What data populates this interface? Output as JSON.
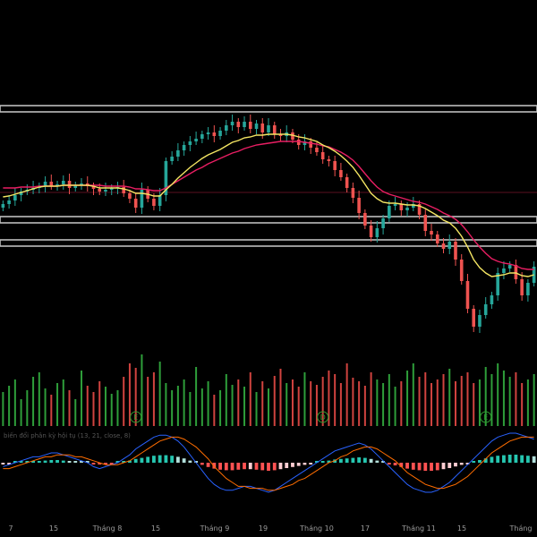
{
  "chart_data": {
    "type": "candlestick",
    "x_ticks": [
      "7",
      "15",
      "Tháng 8",
      "15",
      "Tháng 9",
      "19",
      "Tháng 10",
      "17",
      "Tháng 11",
      "15",
      "Tháng"
    ],
    "oscillator_label": "biến đổi phân kỳ hội tụ (13, 21, close, 8)",
    "event_markers": [
      "E",
      "D",
      "E"
    ],
    "horizontal_zones": [
      {
        "name": "top-resistance",
        "price": 121
      },
      {
        "name": "upper-support",
        "price": 245
      },
      {
        "name": "lower-support",
        "price": 271
      }
    ],
    "reference_price": 215,
    "series": [
      {
        "name": "close",
        "values": [
          228,
          224,
          218,
          214,
          212,
          210,
          208,
          203,
          208,
          206,
          202,
          210,
          207,
          205,
          208,
          211,
          214,
          212,
          210,
          209,
          216,
          222,
          232,
          212,
          222,
          230,
          218,
          180,
          175,
          168,
          162,
          158,
          155,
          150,
          148,
          152,
          146,
          140,
          136,
          142,
          136,
          144,
          138,
          148,
          140,
          150,
          152,
          148,
          156,
          162,
          158,
          165,
          170,
          178,
          180,
          190,
          198,
          210,
          221,
          238,
          252,
          265,
          255,
          244,
          230,
          228,
          235,
          232,
          228,
          240,
          258,
          262,
          272,
          278,
          270,
          290,
          314,
          345,
          365,
          352,
          340,
          330,
          305,
          300,
          296,
          312,
          330,
          316,
          298
        ]
      },
      {
        "name": "ema-fast",
        "values": [
          220,
          219,
          217,
          215,
          213,
          211,
          209,
          208,
          208,
          208,
          207,
          207,
          207,
          207,
          207,
          208,
          210,
          210,
          210,
          210,
          211,
          213,
          216,
          216,
          217,
          219,
          219,
          212,
          206,
          199,
          193,
          187,
          182,
          177,
          173,
          170,
          167,
          163,
          159,
          157,
          154,
          153,
          151,
          151,
          150,
          150,
          150,
          150,
          151,
          153,
          154,
          156,
          158,
          162,
          165,
          169,
          174,
          180,
          187,
          196,
          206,
          216,
          222,
          226,
          227,
          227,
          228,
          229,
          229,
          230,
          233,
          237,
          241,
          246,
          249,
          255,
          264,
          276,
          290,
          299,
          305,
          309,
          308,
          307,
          305,
          305,
          308,
          309,
          307
        ]
      },
      {
        "name": "ema-slow",
        "values": [
          210,
          210,
          210,
          209,
          209,
          209,
          208,
          208,
          208,
          208,
          207,
          207,
          207,
          207,
          207,
          207,
          207,
          208,
          208,
          208,
          208,
          209,
          211,
          211,
          212,
          213,
          213,
          210,
          206,
          202,
          198,
          194,
          190,
          187,
          183,
          180,
          177,
          174,
          171,
          169,
          166,
          164,
          162,
          161,
          160,
          159,
          158,
          158,
          158,
          158,
          159,
          160,
          161,
          163,
          164,
          167,
          170,
          174,
          179,
          186,
          194,
          202,
          209,
          214,
          217,
          219,
          221,
          223,
          225,
          226,
          228,
          231,
          234,
          238,
          241,
          245,
          251,
          259,
          268,
          276,
          283,
          289,
          292,
          294,
          295,
          297,
          300,
          301,
          301
        ]
      }
    ],
    "oscillator": {
      "macd": [
        -2,
        -1,
        0,
        1,
        2,
        3,
        3,
        4,
        5,
        5,
        4,
        3,
        2,
        1,
        0,
        -2,
        -3,
        -2,
        -1,
        0,
        2,
        4,
        7,
        9,
        11,
        13,
        14,
        14,
        13,
        11,
        8,
        4,
        0,
        -4,
        -8,
        -11,
        -13,
        -14,
        -14,
        -13,
        -12,
        -12,
        -13,
        -14,
        -15,
        -14,
        -12,
        -10,
        -8,
        -6,
        -4,
        -2,
        0,
        2,
        4,
        6,
        7,
        8,
        9,
        10,
        9,
        7,
        4,
        1,
        -2,
        -5,
        -8,
        -11,
        -13,
        -14,
        -15,
        -15,
        -14,
        -12,
        -10,
        -7,
        -4,
        -1,
        2,
        5,
        8,
        11,
        13,
        14,
        15,
        15,
        14,
        13,
        12
      ],
      "signal": [
        -3,
        -3,
        -2,
        -1,
        0,
        1,
        2,
        3,
        3,
        4,
        4,
        4,
        3,
        3,
        2,
        1,
        0,
        -1,
        -1,
        -1,
        0,
        1,
        3,
        5,
        7,
        9,
        11,
        12,
        13,
        13,
        12,
        10,
        8,
        5,
        2,
        -2,
        -5,
        -8,
        -10,
        -12,
        -12,
        -13,
        -13,
        -13,
        -14,
        -14,
        -13,
        -12,
        -11,
        -9,
        -8,
        -6,
        -4,
        -2,
        0,
        1,
        3,
        4,
        6,
        7,
        8,
        8,
        7,
        5,
        3,
        1,
        -2,
        -5,
        -7,
        -9,
        -11,
        -12,
        -13,
        -13,
        -12,
        -11,
        -9,
        -7,
        -4,
        -1,
        2,
        5,
        7,
        9,
        11,
        12,
        13,
        13,
        13
      ]
    },
    "volume": [
      38,
      45,
      52,
      30,
      40,
      55,
      60,
      42,
      35,
      48,
      52,
      40,
      30,
      62,
      45,
      38,
      50,
      44,
      36,
      40,
      55,
      70,
      65,
      80,
      55,
      60,
      72,
      48,
      40,
      45,
      52,
      38,
      66,
      42,
      50,
      35,
      40,
      58,
      46,
      52,
      44,
      60,
      38,
      50,
      42,
      56,
      64,
      48,
      52,
      44,
      60,
      50,
      46,
      55,
      62,
      58,
      48,
      70,
      54,
      50,
      45,
      60,
      52,
      48,
      58,
      44,
      50,
      62,
      70,
      55,
      60,
      48,
      52,
      58,
      64,
      50,
      56,
      60,
      48,
      52,
      66,
      58,
      70,
      62,
      55,
      60,
      48,
      52,
      58
    ],
    "grid": false,
    "colors": {
      "up": "#26a69a",
      "down": "#ef5350",
      "ema_fast": "#f5e663",
      "ema_slow": "#e91e63",
      "macd": "#2962ff",
      "signal": "#ff6d00",
      "zone": "#bdbdbd",
      "event": "#2f9a2f"
    }
  }
}
